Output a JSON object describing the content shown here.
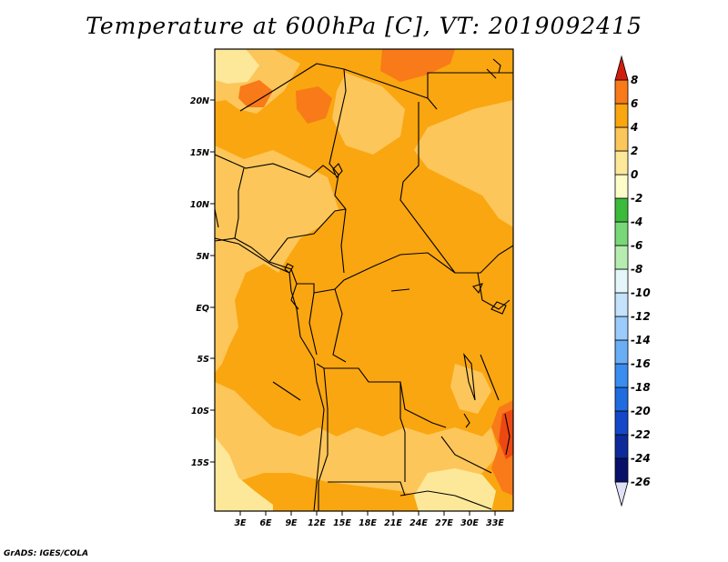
{
  "title": "Temperature at 600hPa [C], VT: 2019092415",
  "credit": "GrADS: IGES/COLA",
  "map": {
    "lat_labels": [
      "20N",
      "15N",
      "10N",
      "5N",
      "EQ",
      "5S",
      "10S",
      "15S"
    ],
    "lon_labels": [
      "3E",
      "6E",
      "9E",
      "12E",
      "15E",
      "18E",
      "21E",
      "24E",
      "27E",
      "30E",
      "33E"
    ]
  },
  "colorbar": {
    "labels": [
      "8",
      "6",
      "4",
      "2",
      "0",
      "-2",
      "-4",
      "-6",
      "-8",
      "-10",
      "-12",
      "-14",
      "-16",
      "-18",
      "-20",
      "-22",
      "-24",
      "-26"
    ],
    "colors": [
      "#e0e0f8",
      "#08106a",
      "#0c2a9a",
      "#1448c8",
      "#1e6ce0",
      "#3a8cf0",
      "#6aaef6",
      "#9acbfa",
      "#c4e2fc",
      "#e4f6fa",
      "#b6ecb0",
      "#78d878",
      "#3cba3c",
      "#fefcc8",
      "#fde89a",
      "#fdc65a",
      "#faa610",
      "#f87a18",
      "#ee4812",
      "#d01e0e"
    ]
  }
}
